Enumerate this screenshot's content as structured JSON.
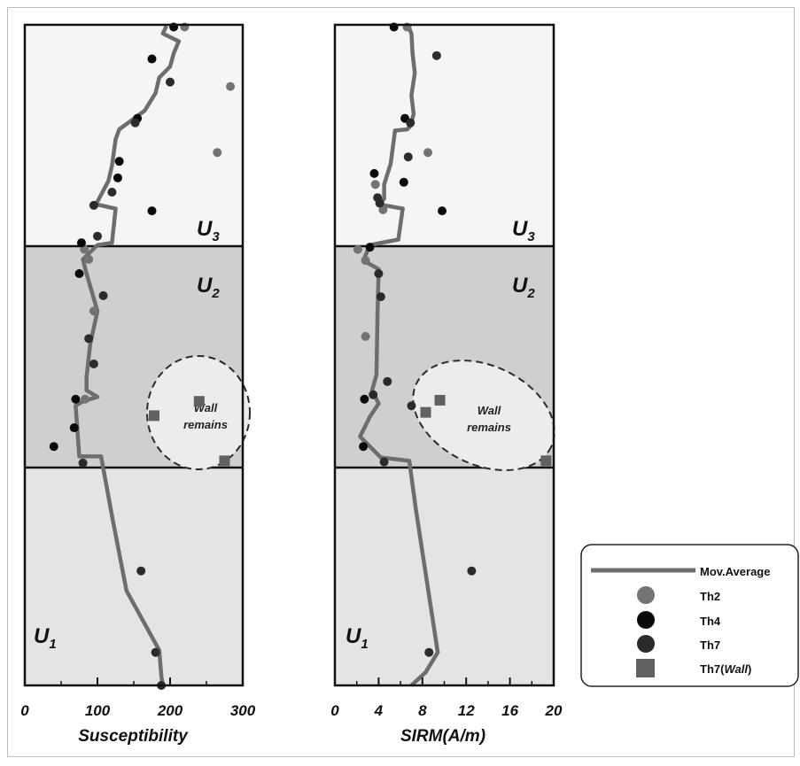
{
  "chart_data": [
    {
      "type": "scatter",
      "xlabel": "Susceptibility",
      "xlim": [
        0,
        300
      ],
      "xticks": [
        "0",
        "100",
        "200",
        "300"
      ],
      "xminor": [
        50,
        150,
        250
      ],
      "units": {
        "U3": {
          "main": "U",
          "sub": "3"
        },
        "U2": {
          "main": "U",
          "sub": "2"
        },
        "U1": {
          "main": "U",
          "sub": "1"
        }
      },
      "ellipse_label": [
        "Wall",
        "remains"
      ],
      "mov_average": [
        {
          "x": 195,
          "y": 0.05
        },
        {
          "x": 190,
          "y": 0.4
        },
        {
          "x": 212,
          "y": 0.75
        },
        {
          "x": 205,
          "y": 1.3
        },
        {
          "x": 200,
          "y": 1.9
        },
        {
          "x": 185,
          "y": 2.4
        },
        {
          "x": 180,
          "y": 3.1
        },
        {
          "x": 165,
          "y": 3.9
        },
        {
          "x": 130,
          "y": 4.75
        },
        {
          "x": 125,
          "y": 5.2
        },
        {
          "x": 120,
          "y": 6.4
        },
        {
          "x": 115,
          "y": 7.1
        },
        {
          "x": 98,
          "y": 8.15
        },
        {
          "x": 125,
          "y": 8.35
        },
        {
          "x": 120,
          "y": 9.9
        },
        {
          "x": 100,
          "y": 10.0
        },
        {
          "x": 80,
          "y": 10.65
        },
        {
          "x": 85,
          "y": 11.3
        },
        {
          "x": 100,
          "y": 13.0
        },
        {
          "x": 90,
          "y": 14.5
        },
        {
          "x": 85,
          "y": 16.0
        },
        {
          "x": 85,
          "y": 16.6
        },
        {
          "x": 100,
          "y": 16.9
        },
        {
          "x": 80,
          "y": 17.1
        },
        {
          "x": 70,
          "y": 17.3
        },
        {
          "x": 75,
          "y": 19.6
        },
        {
          "x": 105,
          "y": 19.6
        },
        {
          "x": 120,
          "y": 22.3
        },
        {
          "x": 140,
          "y": 25.7
        },
        {
          "x": 185,
          "y": 28.4
        },
        {
          "x": 188,
          "y": 29.6
        },
        {
          "x": 190,
          "y": 30.0
        }
      ],
      "th2": [
        {
          "x": 220,
          "y": 0.1
        },
        {
          "x": 283,
          "y": 2.8
        },
        {
          "x": 265,
          "y": 5.8
        },
        {
          "x": 82,
          "y": 10.2
        },
        {
          "x": 88,
          "y": 10.65
        },
        {
          "x": 95,
          "y": 13.0
        },
        {
          "x": 83,
          "y": 17.0
        }
      ],
      "th4": [
        {
          "x": 205,
          "y": 0.1
        },
        {
          "x": 175,
          "y": 1.55
        },
        {
          "x": 155,
          "y": 4.25
        },
        {
          "x": 130,
          "y": 6.2
        },
        {
          "x": 128,
          "y": 6.95
        },
        {
          "x": 175,
          "y": 8.45
        },
        {
          "x": 78,
          "y": 9.9
        },
        {
          "x": 75,
          "y": 11.3
        },
        {
          "x": 70,
          "y": 17.0
        },
        {
          "x": 68,
          "y": 18.3
        },
        {
          "x": 40,
          "y": 19.15
        }
      ],
      "th7": [
        {
          "x": 200,
          "y": 2.6
        },
        {
          "x": 152,
          "y": 4.45
        },
        {
          "x": 120,
          "y": 7.6
        },
        {
          "x": 95,
          "y": 8.2
        },
        {
          "x": 100,
          "y": 9.6
        },
        {
          "x": 108,
          "y": 12.3
        },
        {
          "x": 88,
          "y": 14.25
        },
        {
          "x": 95,
          "y": 15.4
        },
        {
          "x": 80,
          "y": 19.9
        },
        {
          "x": 160,
          "y": 24.8
        },
        {
          "x": 180,
          "y": 28.5
        },
        {
          "x": 188,
          "y": 30.0
        }
      ],
      "th7_wall": [
        {
          "x": 240,
          "y": 17.1
        },
        {
          "x": 178,
          "y": 17.75
        },
        {
          "x": 275,
          "y": 19.8
        }
      ]
    },
    {
      "type": "scatter",
      "xlabel": "SIRM(A/m)",
      "xlim": [
        0,
        20
      ],
      "xticks": [
        "0",
        "4",
        "8",
        "12",
        "16",
        "20"
      ],
      "xminor": [
        2,
        6,
        10,
        14,
        18
      ],
      "units": {
        "U3": {
          "main": "U",
          "sub": "3"
        },
        "U2": {
          "main": "U",
          "sub": "2"
        },
        "U1": {
          "main": "U",
          "sub": "1"
        }
      },
      "ellipse_label": [
        "Wall",
        "remains"
      ],
      "mov_average": [
        {
          "x": 6.7,
          "y": 0.05
        },
        {
          "x": 7.0,
          "y": 0.4
        },
        {
          "x": 7.1,
          "y": 1.3
        },
        {
          "x": 7.3,
          "y": 2.2
        },
        {
          "x": 7.0,
          "y": 3.2
        },
        {
          "x": 7.2,
          "y": 4.05
        },
        {
          "x": 6.9,
          "y": 4.6
        },
        {
          "x": 6.6,
          "y": 4.75
        },
        {
          "x": 5.5,
          "y": 4.8
        },
        {
          "x": 5.1,
          "y": 6.3
        },
        {
          "x": 4.5,
          "y": 7.25
        },
        {
          "x": 4.5,
          "y": 7.9
        },
        {
          "x": 4.0,
          "y": 8.15
        },
        {
          "x": 6.2,
          "y": 8.35
        },
        {
          "x": 5.8,
          "y": 9.75
        },
        {
          "x": 3.2,
          "y": 10.0
        },
        {
          "x": 2.6,
          "y": 10.7
        },
        {
          "x": 4.0,
          "y": 11.1
        },
        {
          "x": 3.9,
          "y": 13.0
        },
        {
          "x": 3.8,
          "y": 15.9
        },
        {
          "x": 3.4,
          "y": 16.6
        },
        {
          "x": 4.0,
          "y": 17.2
        },
        {
          "x": 3.2,
          "y": 17.8
        },
        {
          "x": 2.3,
          "y": 18.7
        },
        {
          "x": 3.5,
          "y": 19.3
        },
        {
          "x": 4.2,
          "y": 19.65
        },
        {
          "x": 6.8,
          "y": 19.8
        },
        {
          "x": 7.4,
          "y": 22.0
        },
        {
          "x": 9.4,
          "y": 28.5
        },
        {
          "x": 8.3,
          "y": 29.4
        },
        {
          "x": 7.0,
          "y": 30.0
        }
      ],
      "th2": [
        {
          "x": 6.6,
          "y": 0.1
        },
        {
          "x": 8.5,
          "y": 5.8
        },
        {
          "x": 3.7,
          "y": 7.25
        },
        {
          "x": 4.4,
          "y": 8.4
        },
        {
          "x": 2.1,
          "y": 10.2
        },
        {
          "x": 2.8,
          "y": 10.7
        },
        {
          "x": 2.8,
          "y": 14.15
        }
      ],
      "th4": [
        {
          "x": 5.4,
          "y": 0.1
        },
        {
          "x": 6.4,
          "y": 4.25
        },
        {
          "x": 3.6,
          "y": 6.75
        },
        {
          "x": 6.3,
          "y": 7.15
        },
        {
          "x": 9.8,
          "y": 8.45
        },
        {
          "x": 3.2,
          "y": 10.1
        },
        {
          "x": 2.7,
          "y": 17.0
        },
        {
          "x": 2.6,
          "y": 19.15
        }
      ],
      "th7": [
        {
          "x": 9.3,
          "y": 1.4
        },
        {
          "x": 6.9,
          "y": 4.45
        },
        {
          "x": 6.7,
          "y": 6.0
        },
        {
          "x": 3.9,
          "y": 7.85
        },
        {
          "x": 4.1,
          "y": 8.1
        },
        {
          "x": 4.0,
          "y": 11.3
        },
        {
          "x": 4.2,
          "y": 12.35
        },
        {
          "x": 4.8,
          "y": 16.2
        },
        {
          "x": 3.5,
          "y": 16.8
        },
        {
          "x": 7.0,
          "y": 17.3
        },
        {
          "x": 4.5,
          "y": 19.85
        },
        {
          "x": 12.5,
          "y": 24.8
        },
        {
          "x": 8.6,
          "y": 28.5
        }
      ],
      "th7_wall": [
        {
          "x": 9.6,
          "y": 17.05
        },
        {
          "x": 8.3,
          "y": 17.6
        },
        {
          "x": 19.3,
          "y": 19.8
        }
      ]
    }
  ],
  "legend": {
    "items": [
      {
        "label": "Mov.Average",
        "marker": "line"
      },
      {
        "label": "Th2",
        "marker": "circle"
      },
      {
        "label": "Th4",
        "marker": "circle"
      },
      {
        "label": "Th7",
        "marker": "circle"
      },
      {
        "label": "Th7(",
        "label_italic": "Wall",
        "label_end": ")",
        "marker": "square"
      }
    ]
  },
  "colors": {
    "line": "#6d6d6d",
    "th2": "#737373",
    "th4": "#0a0a0a",
    "th7": "#2b2b2b",
    "wall": "#616161",
    "zone_u3": "#f5f5f5",
    "zone_u2": "#cfcfcf",
    "zone_u1": "#e4e4e4",
    "ellipse_fill": "#ececec"
  }
}
